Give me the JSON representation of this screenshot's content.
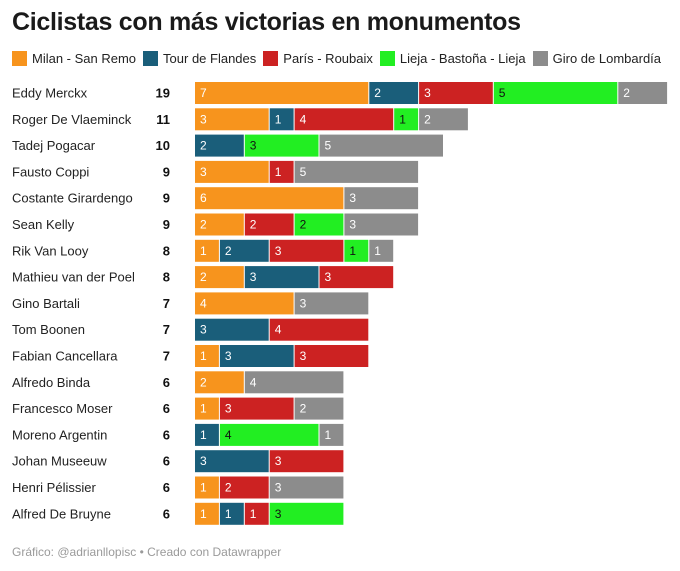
{
  "title": "Ciclistas con más victorias en monumentos",
  "footer": {
    "source": "Gráfico: @adrianllopisc",
    "separator": "•",
    "credit": "Creado con Datawrapper"
  },
  "chart_data": {
    "type": "bar",
    "orientation": "horizontal",
    "stacked": true,
    "title": "Ciclistas con más victorias en monumentos",
    "legend_position": "top",
    "series": [
      {
        "name": "Milan - San Remo",
        "color": "#f7941d",
        "label_color": "#ffffff"
      },
      {
        "name": "Tour de Flandes",
        "color": "#1a5e7a",
        "label_color": "#ffffff"
      },
      {
        "name": "París - Roubaix",
        "color": "#cc2222",
        "label_color": "#ffffff"
      },
      {
        "name": "Lieja - Bastoña - Lieja",
        "color": "#22ee22",
        "label_color": "#111111"
      },
      {
        "name": "Giro de Lombardía",
        "color": "#8c8c8c",
        "label_color": "#ffffff"
      }
    ],
    "rows": [
      {
        "name": "Eddy Merckx",
        "total": "19",
        "values": [
          7,
          2,
          3,
          5,
          2
        ]
      },
      {
        "name": "Roger De Vlaeminck",
        "total": "11",
        "values": [
          3,
          1,
          4,
          1,
          2
        ]
      },
      {
        "name": "Tadej Pogacar",
        "total": "10",
        "values": [
          0,
          2,
          0,
          3,
          5
        ]
      },
      {
        "name": "Fausto Coppi",
        "total": "9",
        "values": [
          3,
          0,
          1,
          0,
          5
        ]
      },
      {
        "name": "Costante Girardengo",
        "total": "9",
        "values": [
          6,
          0,
          0,
          0,
          3
        ]
      },
      {
        "name": "Sean Kelly",
        "total": "9",
        "values": [
          2,
          0,
          2,
          2,
          3
        ]
      },
      {
        "name": "Rik Van Looy",
        "total": "8",
        "values": [
          1,
          2,
          3,
          1,
          1
        ]
      },
      {
        "name": "Mathieu van der Poel",
        "total": "8",
        "values": [
          2,
          3,
          3,
          0,
          0
        ]
      },
      {
        "name": "Gino Bartali",
        "total": "7",
        "values": [
          4,
          0,
          0,
          0,
          3
        ]
      },
      {
        "name": "Tom Boonen",
        "total": "7",
        "values": [
          0,
          3,
          4,
          0,
          0
        ]
      },
      {
        "name": "Fabian Cancellara",
        "total": "7",
        "values": [
          1,
          3,
          3,
          0,
          0
        ]
      },
      {
        "name": "Alfredo Binda",
        "total": "6",
        "values": [
          2,
          0,
          0,
          0,
          4
        ]
      },
      {
        "name": "Francesco Moser",
        "total": "6",
        "values": [
          1,
          0,
          3,
          0,
          2
        ]
      },
      {
        "name": "Moreno Argentin",
        "total": "6",
        "values": [
          0,
          1,
          0,
          4,
          1
        ]
      },
      {
        "name": "Johan Museeuw",
        "total": "6",
        "values": [
          0,
          3,
          3,
          0,
          0
        ]
      },
      {
        "name": "Henri Pélissier",
        "total": "6",
        "values": [
          1,
          0,
          2,
          0,
          3
        ]
      },
      {
        "name": "Alfred De Bruyne",
        "total": "6",
        "values": [
          1,
          1,
          1,
          3,
          0
        ]
      }
    ]
  }
}
